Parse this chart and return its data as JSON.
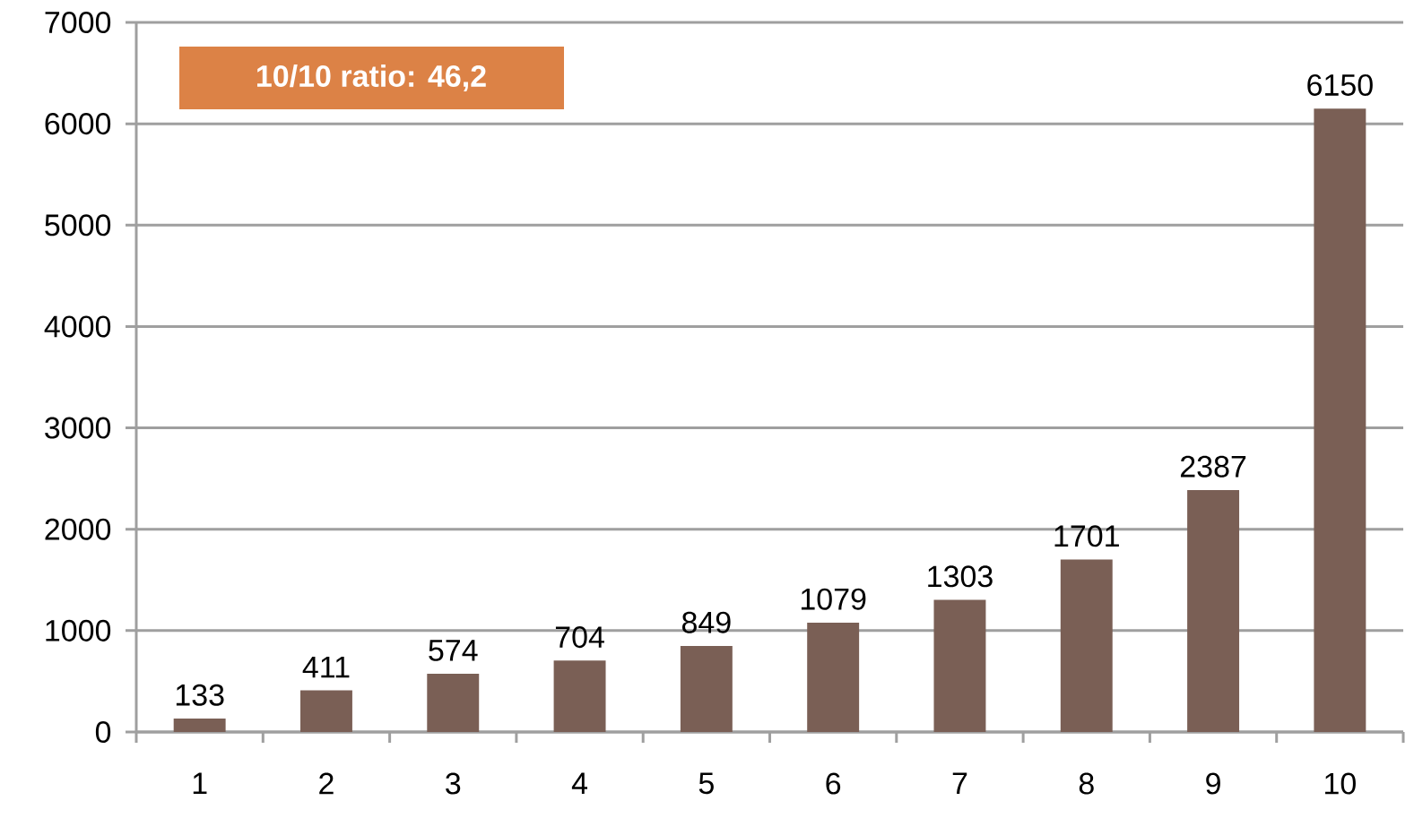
{
  "chart_data": {
    "type": "bar",
    "categories": [
      "1",
      "2",
      "3",
      "4",
      "5",
      "6",
      "7",
      "8",
      "9",
      "10"
    ],
    "values": [
      133,
      411,
      574,
      704,
      849,
      1079,
      1303,
      1701,
      2387,
      6150
    ],
    "color": "#7a5f55",
    "ylim": [
      0,
      7000
    ],
    "yticks": [
      0,
      1000,
      2000,
      3000,
      4000,
      5000,
      6000,
      7000
    ],
    "grid": "y",
    "data_labels": true,
    "annotations": [
      "10/10 ratio: 46,2"
    ]
  }
}
